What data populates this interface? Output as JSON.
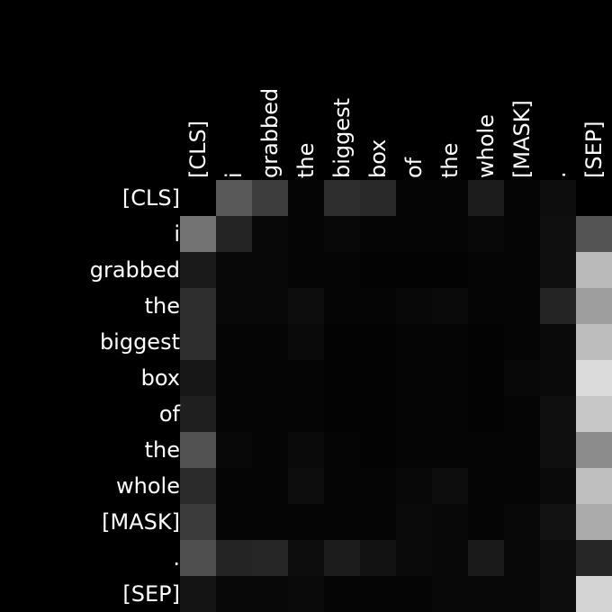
{
  "chart_data": {
    "type": "heatmap",
    "colormap": "grayscale",
    "background_color": "#000000",
    "label_color": "#ffffff",
    "x_labels": [
      "[CLS]",
      "i",
      "grabbed",
      "the",
      "biggest",
      "box",
      "of",
      "the",
      "whole",
      "[MASK]",
      ".",
      "[SEP]"
    ],
    "y_labels": [
      "[CLS]",
      "i",
      "grabbed",
      "the",
      "biggest",
      "box",
      "of",
      "the",
      "whole",
      "[MASK]",
      ".",
      "[SEP]"
    ],
    "value_range": [
      0,
      1
    ],
    "values": [
      [
        0.0,
        0.35,
        0.24,
        0.02,
        0.18,
        0.16,
        0.02,
        0.02,
        0.11,
        0.02,
        0.05,
        0.0
      ],
      [
        0.45,
        0.14,
        0.03,
        0.02,
        0.03,
        0.02,
        0.02,
        0.02,
        0.03,
        0.02,
        0.06,
        0.33
      ],
      [
        0.1,
        0.03,
        0.03,
        0.02,
        0.02,
        0.01,
        0.01,
        0.01,
        0.02,
        0.02,
        0.06,
        0.73
      ],
      [
        0.18,
        0.03,
        0.03,
        0.05,
        0.02,
        0.02,
        0.03,
        0.04,
        0.02,
        0.02,
        0.14,
        0.62
      ],
      [
        0.18,
        0.02,
        0.02,
        0.04,
        0.01,
        0.01,
        0.02,
        0.02,
        0.01,
        0.02,
        0.04,
        0.74
      ],
      [
        0.09,
        0.02,
        0.02,
        0.02,
        0.01,
        0.01,
        0.02,
        0.02,
        0.01,
        0.03,
        0.04,
        0.86
      ],
      [
        0.12,
        0.02,
        0.02,
        0.02,
        0.01,
        0.01,
        0.02,
        0.02,
        0.01,
        0.02,
        0.06,
        0.78
      ],
      [
        0.32,
        0.03,
        0.02,
        0.04,
        0.02,
        0.01,
        0.02,
        0.02,
        0.02,
        0.02,
        0.06,
        0.55
      ],
      [
        0.17,
        0.02,
        0.02,
        0.05,
        0.02,
        0.02,
        0.03,
        0.05,
        0.02,
        0.02,
        0.04,
        0.75
      ],
      [
        0.23,
        0.02,
        0.02,
        0.02,
        0.02,
        0.02,
        0.04,
        0.03,
        0.02,
        0.03,
        0.07,
        0.67
      ],
      [
        0.31,
        0.14,
        0.15,
        0.05,
        0.11,
        0.07,
        0.04,
        0.03,
        0.1,
        0.03,
        0.05,
        0.15
      ],
      [
        0.08,
        0.03,
        0.03,
        0.04,
        0.02,
        0.02,
        0.02,
        0.03,
        0.03,
        0.03,
        0.05,
        0.83
      ]
    ]
  }
}
